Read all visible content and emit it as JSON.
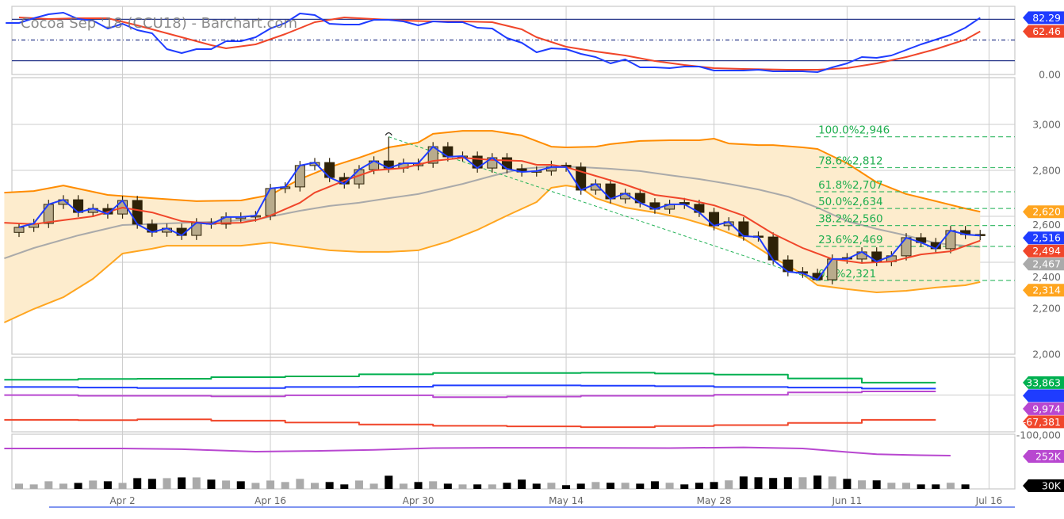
{
  "title": "Cocoa Sep '18 (CCU18) - Barchart.com",
  "colors": {
    "close_line": "#1f3cff",
    "ema": "#f0462a",
    "sma": "#aaaaaa",
    "band_upper": "#ff8c00",
    "band_lower": "#ffa51f",
    "band_fill": "#fdeccd",
    "fib": "#22b257",
    "up_body": "#b8ab8c",
    "down_body": "#2e2208",
    "cot_green": "#00b050",
    "cot_blue": "#1f3cff",
    "cot_purple": "#b847d0",
    "cot_red": "#f0462a",
    "volume_up": "#aaaaaa",
    "volume_down": "#000000",
    "open_interest": "#b847d0"
  },
  "chart_data": {
    "type": "candlestick",
    "x_ticks": [
      {
        "label": "Apr 2",
        "index": 7
      },
      {
        "label": "Apr 16",
        "index": 17
      },
      {
        "label": "Apr 30",
        "index": 27
      },
      {
        "label": "May 14",
        "index": 37
      },
      {
        "label": "May 28",
        "index": 47
      },
      {
        "label": "Jun 11",
        "index": 56
      },
      {
        "label": "Jul 16",
        "index": 65.6
      }
    ],
    "oscillator": {
      "ylim": [
        0,
        100
      ],
      "levels": [
        80,
        50,
        20
      ],
      "y_ticks": [
        {
          "value": 0,
          "label": "0.00"
        }
      ],
      "fast": [
        74.7,
        81.6,
        87.4,
        89.7,
        80.5,
        78.2,
        66.7,
        73.6,
        64.4,
        59.8,
        36.8,
        31.0,
        36.8,
        36.8,
        48.3,
        48.3,
        54.0,
        66.7,
        74.7,
        88.5,
        86.2,
        73.6,
        72.4,
        72.4,
        79.3,
        79.3,
        77.0,
        71.3,
        77.0,
        75.9,
        75.9,
        67.8,
        66.7,
        52.9,
        46.0,
        32.2,
        37.9,
        36.8,
        29.9,
        25.3,
        16.1,
        21.8,
        10.3,
        10.3,
        9.2,
        11.5,
        11.5,
        5.7,
        5.7,
        5.7,
        6.9,
        4.6,
        4.6,
        4.6,
        3.4,
        10.3,
        16.1,
        25.3,
        24.1,
        27.6,
        35.6,
        43.7,
        50.6,
        57.5,
        67.8,
        82.3
      ],
      "slow": {
        "index": [
          0,
          2,
          4,
          6,
          8,
          10,
          12,
          13,
          14,
          16,
          18,
          20,
          22,
          24,
          26,
          28,
          30,
          32,
          34,
          35,
          37,
          39,
          41,
          43,
          45,
          47,
          49,
          52,
          54,
          56,
          58,
          60,
          62,
          64,
          65
        ],
        "values": [
          82.8,
          80.5,
          81.6,
          81.6,
          71.3,
          59.8,
          48.3,
          42.5,
          37.9,
          43.7,
          58.6,
          75.9,
          82.8,
          80.5,
          78.2,
          77.0,
          77.0,
          75.9,
          65.5,
          54.0,
          40.2,
          33.3,
          27.6,
          19.5,
          13.8,
          9.2,
          8.0,
          6.9,
          6.9,
          9.2,
          16.1,
          25.3,
          36.8,
          50.6,
          62.5
        ]
      },
      "last_labels": [
        {
          "text": "82.29",
          "value": 82.29,
          "color": "#1f3cff"
        },
        {
          "text": "62.46",
          "value": 62.46,
          "color": "#f0462a"
        }
      ]
    },
    "price": {
      "ylim": [
        2000,
        3000
      ],
      "y_ticks": [
        {
          "value": 3000,
          "label": "3,000"
        },
        {
          "value": 2800,
          "label": "2,800"
        },
        {
          "value": 2600,
          "label": "2,600"
        },
        {
          "value": 2400,
          "label": "2,400"
        },
        {
          "value": 2200,
          "label": "2,200"
        },
        {
          "value": 2000,
          "label": "2,000"
        }
      ],
      "open": [
        2530,
        2552,
        2569,
        2652,
        2672,
        2617,
        2634,
        2610,
        2669,
        2566,
        2531,
        2548,
        2517,
        2572,
        2566,
        2590,
        2597,
        2603,
        2721,
        2728,
        2821,
        2834,
        2769,
        2741,
        2803,
        2841,
        2810,
        2820,
        2831,
        2903,
        2859,
        2862,
        2810,
        2855,
        2807,
        2793,
        2797,
        2822,
        2814,
        2714,
        2741,
        2676,
        2700,
        2659,
        2631,
        2660,
        2652,
        2617,
        2559,
        2576,
        2514,
        2510,
        2410,
        2359,
        2352,
        2324,
        2420,
        2414,
        2445,
        2403,
        2428,
        2507,
        2486,
        2459,
        2538,
        2521
      ],
      "high": [
        2572,
        2589,
        2672,
        2692,
        2692,
        2654,
        2654,
        2689,
        2689,
        2586,
        2568,
        2568,
        2592,
        2592,
        2617,
        2617,
        2623,
        2741,
        2748,
        2841,
        2854,
        2854,
        2789,
        2823,
        2861,
        2946,
        2851,
        2851,
        2923,
        2923,
        2882,
        2882,
        2875,
        2875,
        2827,
        2817,
        2842,
        2834,
        2834,
        2761,
        2761,
        2720,
        2720,
        2679,
        2672,
        2680,
        2672,
        2637,
        2596,
        2596,
        2534,
        2530,
        2430,
        2379,
        2372,
        2434,
        2440,
        2465,
        2465,
        2448,
        2527,
        2527,
        2506,
        2558,
        2558,
        2541
      ],
      "low": [
        2510,
        2532,
        2549,
        2632,
        2597,
        2597,
        2590,
        2590,
        2546,
        2511,
        2511,
        2497,
        2497,
        2546,
        2546,
        2570,
        2577,
        2583,
        2701,
        2708,
        2801,
        2749,
        2721,
        2721,
        2783,
        2790,
        2790,
        2800,
        2811,
        2839,
        2839,
        2790,
        2790,
        2787,
        2773,
        2773,
        2777,
        2794,
        2694,
        2694,
        2656,
        2656,
        2639,
        2611,
        2611,
        2632,
        2597,
        2539,
        2539,
        2494,
        2490,
        2390,
        2339,
        2332,
        2321,
        2304,
        2394,
        2394,
        2383,
        2383,
        2408,
        2466,
        2439,
        2439,
        2501,
        2496
      ],
      "close": [
        2552,
        2569,
        2652,
        2672,
        2617,
        2634,
        2610,
        2669,
        2566,
        2531,
        2548,
        2517,
        2572,
        2566,
        2597,
        2597,
        2603,
        2721,
        2728,
        2821,
        2834,
        2769,
        2741,
        2803,
        2841,
        2810,
        2831,
        2831,
        2903,
        2859,
        2862,
        2810,
        2855,
        2807,
        2793,
        2797,
        2814,
        2814,
        2714,
        2741,
        2676,
        2700,
        2659,
        2631,
        2652,
        2652,
        2617,
        2559,
        2576,
        2514,
        2510,
        2410,
        2359,
        2352,
        2324,
        2414,
        2414,
        2445,
        2403,
        2428,
        2507,
        2486,
        2459,
        2538,
        2521,
        2516
      ],
      "swing_high_index": 25,
      "bollinger_upper": {
        "index": [
          -1,
          1,
          3,
          6,
          9,
          12,
          15,
          17,
          19,
          21,
          23,
          25,
          27,
          28,
          30,
          32,
          34,
          36,
          37,
          39,
          40,
          42,
          44,
          46,
          47,
          48,
          50,
          51,
          53,
          54,
          56,
          58,
          60,
          62,
          64,
          65
        ],
        "values": [
          2703,
          2710,
          2734,
          2693,
          2679,
          2666,
          2669,
          2693,
          2762,
          2814,
          2855,
          2900,
          2921,
          2959,
          2972,
          2972,
          2952,
          2903,
          2900,
          2903,
          2914,
          2928,
          2931,
          2931,
          2938,
          2917,
          2910,
          2910,
          2900,
          2893,
          2831,
          2748,
          2697,
          2666,
          2634,
          2620
        ]
      },
      "bollinger_lower": {
        "index": [
          -1,
          1,
          3,
          5,
          7,
          9,
          10,
          12,
          15,
          17,
          19,
          21,
          23,
          25,
          27,
          29,
          31,
          33,
          35,
          36,
          37,
          38,
          39,
          41,
          43,
          45,
          47,
          49,
          51,
          53,
          54,
          56,
          58,
          60,
          62,
          64,
          65
        ],
        "values": [
          2138,
          2197,
          2248,
          2328,
          2438,
          2459,
          2472,
          2472,
          2472,
          2486,
          2469,
          2452,
          2445,
          2445,
          2452,
          2490,
          2541,
          2603,
          2662,
          2724,
          2734,
          2724,
          2679,
          2638,
          2617,
          2590,
          2552,
          2503,
          2421,
          2348,
          2300,
          2283,
          2269,
          2276,
          2290,
          2300,
          2314
        ]
      },
      "sma": {
        "index": [
          -1,
          1,
          4,
          7,
          10,
          13,
          16,
          19,
          21,
          23,
          25,
          27,
          30,
          32,
          34,
          36,
          38,
          40,
          42,
          44,
          46,
          48,
          50,
          52,
          54,
          56,
          58,
          60,
          62,
          64,
          65
        ],
        "values": [
          2417,
          2462,
          2517,
          2562,
          2569,
          2576,
          2586,
          2624,
          2645,
          2659,
          2679,
          2697,
          2741,
          2776,
          2807,
          2817,
          2814,
          2807,
          2797,
          2779,
          2762,
          2741,
          2717,
          2686,
          2638,
          2579,
          2545,
          2517,
          2483,
          2472,
          2467
        ]
      },
      "ema": {
        "index": [
          -1,
          1,
          3,
          5,
          7,
          9,
          11,
          13,
          15,
          16,
          17,
          19,
          20,
          22,
          24,
          26,
          28,
          30,
          32,
          34,
          35,
          36,
          37,
          39,
          41,
          43,
          45,
          47,
          49,
          51,
          53,
          55,
          57,
          59,
          61,
          63,
          65
        ],
        "values": [
          2572,
          2566,
          2583,
          2600,
          2638,
          2617,
          2579,
          2569,
          2572,
          2583,
          2603,
          2659,
          2703,
          2755,
          2800,
          2810,
          2841,
          2855,
          2845,
          2841,
          2824,
          2824,
          2814,
          2776,
          2738,
          2693,
          2676,
          2648,
          2603,
          2524,
          2462,
          2414,
          2397,
          2403,
          2434,
          2448,
          2494
        ]
      },
      "trendline": {
        "from_index": 25,
        "from_price": 2946,
        "to_index": 54,
        "to_price": 2321
      },
      "fibonacci": {
        "start_index": 54,
        "levels": [
          {
            "label": "100.0%2,946",
            "price": 2946
          },
          {
            "label": "78.6%2,812",
            "price": 2812
          },
          {
            "label": "61.8%2,707",
            "price": 2707
          },
          {
            "label": "50.0%2,634",
            "price": 2634
          },
          {
            "label": "38.2%2,560",
            "price": 2560
          },
          {
            "label": "23.6%2,469",
            "price": 2469
          },
          {
            "label": "0.0%2,321",
            "price": 2321
          }
        ]
      },
      "last_labels": [
        {
          "text": "2,620",
          "value": 2620,
          "color": "#ffa51f"
        },
        {
          "text": "2,516",
          "value": 2516,
          "color": "#1f3cff"
        },
        {
          "text": "2,467",
          "value": 2467,
          "color": "#aaaaaa"
        },
        {
          "text": "2,494",
          "value": 2494,
          "color": "#f0462a"
        },
        {
          "text": "2,314",
          "value": 2314,
          "color": "#ffa51f"
        }
      ]
    },
    "cot": {
      "y_ticks": [
        {
          "value": -100000,
          "label": "-100,000"
        }
      ],
      "week_start_index": [
        -1,
        4,
        8,
        13,
        18,
        23,
        28,
        33,
        38,
        43,
        47,
        52,
        57,
        62
      ],
      "series": [
        {
          "color": "#00b050",
          "values": [
            41600,
            43700,
            44400,
            48700,
            50800,
            56400,
            59900,
            59900,
            60600,
            58500,
            55700,
            45100,
            33863
          ]
        },
        {
          "color": "#1f3cff",
          "values": [
            21900,
            20500,
            19100,
            19100,
            21900,
            22600,
            26200,
            26200,
            25500,
            24000,
            21900,
            20500,
            17700
          ]
        },
        {
          "color": "#b847d0",
          "values": [
            100,
            -2000,
            -2000,
            -3400,
            -600,
            -600,
            -5500,
            -4100,
            -2000,
            -2000,
            800,
            7200,
            9974
          ]
        },
        {
          "color": "#f0462a",
          "values": [
            -67400,
            -68100,
            -66000,
            -69500,
            -74400,
            -80000,
            -83500,
            -85000,
            -87100,
            -84200,
            -81400,
            -75800,
            -67381
          ]
        }
      ],
      "last_labels": [
        {
          "text": "33,863",
          "value": 33863,
          "color": "#00b050"
        },
        {
          "text": "",
          "value": 17700,
          "color": "#1f3cff"
        },
        {
          "text": "9,974",
          "value": 9974,
          "color": "#b847d0"
        },
        {
          "text": "-67,381",
          "value": -67381,
          "color": "#f0462a"
        }
      ]
    },
    "volume": {
      "unit": "K",
      "values": [
        35,
        30,
        51,
        35,
        40,
        56,
        51,
        40,
        72,
        67,
        72,
        77,
        77,
        62,
        56,
        51,
        40,
        56,
        46,
        67,
        40,
        46,
        30,
        56,
        35,
        88,
        35,
        46,
        51,
        35,
        30,
        30,
        30,
        41,
        62,
        35,
        41,
        25,
        35,
        46,
        41,
        41,
        35,
        51,
        41,
        30,
        41,
        46,
        57,
        83,
        78,
        73,
        78,
        78,
        89,
        83,
        67,
        57,
        57,
        41,
        41,
        30,
        30,
        41,
        30
      ],
      "direction": [
        "up",
        "up",
        "up",
        "up",
        "down",
        "up",
        "down",
        "up",
        "down",
        "down",
        "up",
        "down",
        "up",
        "down",
        "up",
        "down",
        "up",
        "up",
        "up",
        "up",
        "up",
        "down",
        "down",
        "up",
        "up",
        "down",
        "up",
        "down",
        "up",
        "down",
        "up",
        "down",
        "up",
        "down",
        "down",
        "down",
        "up",
        "down",
        "down",
        "up",
        "down",
        "up",
        "down",
        "down",
        "up",
        "down",
        "down",
        "down",
        "up",
        "down",
        "down",
        "down",
        "down",
        "up",
        "down",
        "up",
        "down",
        "up",
        "down",
        "up",
        "up",
        "down",
        "down",
        "up",
        "down"
      ],
      "open_interest": {
        "index": [
          -1,
          7,
          11,
          14,
          16,
          20,
          24,
          28,
          32,
          37,
          44,
          49,
          53,
          56,
          58,
          61,
          63
        ],
        "values": [
          272,
          272,
          270,
          266,
          263,
          265,
          268,
          273,
          274,
          274,
          273,
          275,
          272,
          262,
          256,
          253,
          252
        ]
      },
      "last_labels": [
        {
          "text": "252K",
          "color": "#b847d0"
        },
        {
          "text": "30K",
          "color": "#000000"
        }
      ]
    }
  }
}
